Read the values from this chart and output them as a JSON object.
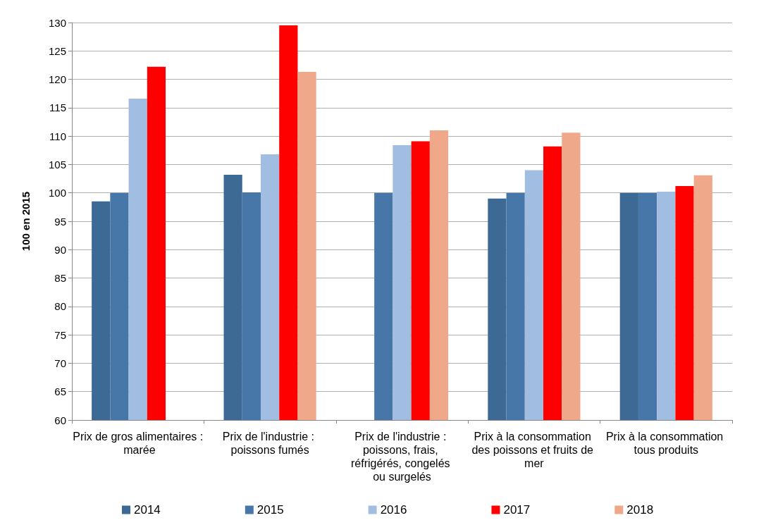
{
  "chart_data": {
    "type": "bar",
    "ylabel": "100 en 2015",
    "categories": [
      "Prix de gros alimentaires : marée",
      "Prix de l'industrie : poissons fumés",
      "Prix de l'industrie : poissons, frais, réfrigérés, congelés ou surgelés",
      "Prix à la consommation des poissons et fruits de mer",
      "Prix à la consommation tous produits"
    ],
    "series": [
      {
        "name": "2014",
        "color": "#3d6a94",
        "values": [
          98.5,
          103.2,
          null,
          99,
          100
        ]
      },
      {
        "name": "2015",
        "color": "#4777a8",
        "values": [
          100,
          100.1,
          100,
          100,
          100
        ]
      },
      {
        "name": "2016",
        "color": "#a2bde2",
        "values": [
          116.6,
          106.8,
          108.4,
          104,
          100.2
        ]
      },
      {
        "name": "2017",
        "color": "#ff0000",
        "values": [
          122.2,
          129.5,
          109.1,
          108.2,
          101.2
        ]
      },
      {
        "name": "2018",
        "color": "#f0a88b",
        "values": [
          null,
          121.3,
          111,
          110.6,
          103.1
        ]
      }
    ],
    "ylim": [
      60,
      130
    ],
    "yticks": [
      60,
      65,
      70,
      75,
      80,
      85,
      90,
      95,
      100,
      105,
      110,
      115,
      120,
      125,
      130
    ],
    "grid": "y",
    "legend": "bottom"
  }
}
